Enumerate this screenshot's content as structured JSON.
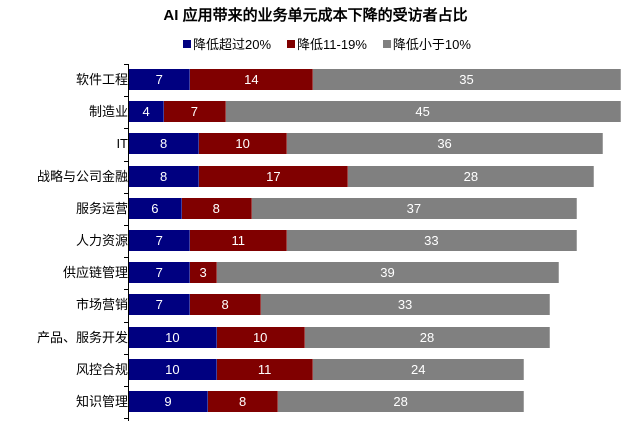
{
  "chart_data": {
    "type": "bar",
    "orientation": "horizontal",
    "stacked": true,
    "title": "AI 应用带来的业务单元成本下降的受访者占比",
    "xlabel": "",
    "ylabel": "",
    "legend_position": "top",
    "grid": false,
    "categories": [
      "软件工程",
      "制造业",
      "IT",
      "战略与公司金融",
      "服务运营",
      "人力资源",
      "供应链管理",
      "市场营销",
      "产品、服务开发",
      "风控合规",
      "知识管理"
    ],
    "series": [
      {
        "name": "降低超过20%",
        "color": "#000080",
        "values": [
          7,
          4,
          8,
          8,
          6,
          7,
          7,
          7,
          10,
          10,
          9
        ]
      },
      {
        "name": "降低11-19%",
        "color": "#800000",
        "values": [
          14,
          7,
          10,
          17,
          8,
          11,
          3,
          8,
          10,
          11,
          8
        ]
      },
      {
        "name": "降低小于10%",
        "color": "#808080",
        "values": [
          35,
          45,
          36,
          28,
          37,
          33,
          39,
          33,
          28,
          24,
          28
        ]
      }
    ]
  },
  "title": "AI 应用带来的业务单元成本下降的受访者占比",
  "legend": [
    "降低超过20%",
    "降低11-19%",
    "降低小于10%"
  ]
}
